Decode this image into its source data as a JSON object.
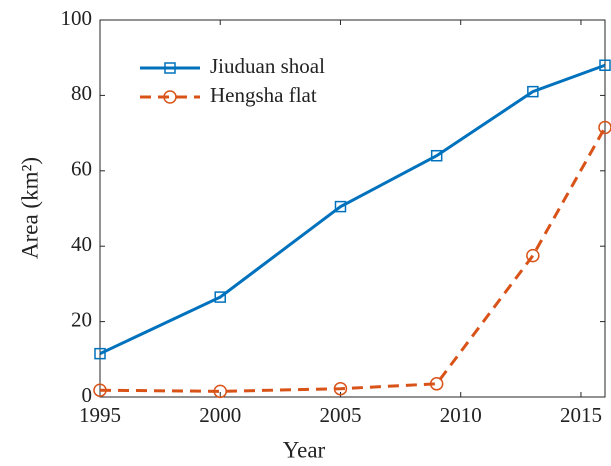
{
  "chart_data": {
    "type": "line",
    "x": [
      1995,
      2000,
      2005,
      2009,
      2013,
      2016
    ],
    "series": [
      {
        "name": "Jiuduan shoal",
        "color": "#0072bd",
        "marker": "square",
        "linestyle": "solid",
        "values": [
          11.5,
          26.5,
          50.5,
          64,
          81,
          88
        ]
      },
      {
        "name": "Hengsha flat",
        "color": "#d95319",
        "marker": "circle",
        "linestyle": "dashed",
        "values": [
          1.8,
          1.5,
          2.2,
          3.5,
          37.5,
          71.5
        ]
      }
    ],
    "xlabel": "Year",
    "ylabel": "Area (km²)",
    "xlim": [
      1995,
      2016
    ],
    "xticks": [
      1995,
      2000,
      2005,
      2010,
      2015
    ],
    "ylim": [
      0,
      100
    ],
    "yticks": [
      0,
      20,
      40,
      60,
      80,
      100
    ],
    "grid": false,
    "legend": "upper left"
  }
}
